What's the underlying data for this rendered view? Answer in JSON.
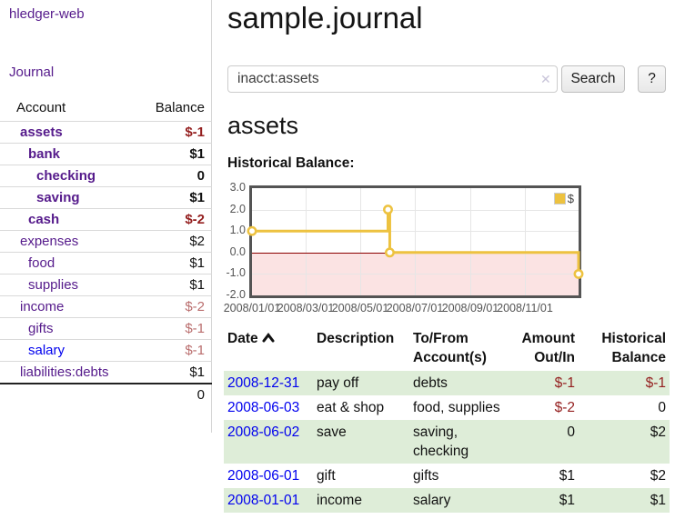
{
  "sidebar": {
    "brand": "hledger-web",
    "nav": [
      {
        "label": "Journal"
      }
    ],
    "accounts_table": {
      "headers": {
        "account": "Account",
        "balance": "Balance"
      },
      "rows": [
        {
          "name": "assets",
          "depth": 1,
          "balance": "$-1",
          "emphasis": true,
          "balance_tone": "neg-strong",
          "link_tone": "purple"
        },
        {
          "name": "bank",
          "depth": 2,
          "balance": "$1",
          "emphasis": true,
          "balance_tone": "normal",
          "link_tone": "purple"
        },
        {
          "name": "checking",
          "depth": 3,
          "balance": "0",
          "emphasis": true,
          "balance_tone": "normal",
          "link_tone": "purple"
        },
        {
          "name": "saving",
          "depth": 3,
          "balance": "$1",
          "emphasis": true,
          "balance_tone": "normal",
          "link_tone": "purple"
        },
        {
          "name": "cash",
          "depth": 2,
          "balance": "$-2",
          "emphasis": true,
          "balance_tone": "neg-strong",
          "link_tone": "purple"
        },
        {
          "name": "expenses",
          "depth": 1,
          "balance": "$2",
          "emphasis": false,
          "balance_tone": "normal",
          "link_tone": "purple"
        },
        {
          "name": "food",
          "depth": 2,
          "balance": "$1",
          "emphasis": false,
          "balance_tone": "normal",
          "link_tone": "purple"
        },
        {
          "name": "supplies",
          "depth": 2,
          "balance": "$1",
          "emphasis": false,
          "balance_tone": "normal",
          "link_tone": "purple"
        },
        {
          "name": "income",
          "depth": 1,
          "balance": "$-2",
          "emphasis": false,
          "balance_tone": "neg-muted",
          "link_tone": "purple"
        },
        {
          "name": "gifts",
          "depth": 2,
          "balance": "$-1",
          "emphasis": false,
          "balance_tone": "neg-muted",
          "link_tone": "purple"
        },
        {
          "name": "salary",
          "depth": 2,
          "balance": "$-1",
          "emphasis": false,
          "balance_tone": "neg-muted",
          "link_tone": "blue"
        },
        {
          "name": "liabilities:debts",
          "depth": 1,
          "balance": "$1",
          "emphasis": false,
          "balance_tone": "normal",
          "link_tone": "purple"
        }
      ],
      "total": "0"
    }
  },
  "main": {
    "title": "sample.journal",
    "search": {
      "value": "inacct:assets",
      "clear_icon": "✕",
      "button": "Search",
      "help_button": "?"
    },
    "account_heading": "assets",
    "chart_label": "Historical Balance:"
  },
  "chart_data": {
    "type": "line",
    "step": true,
    "title": "Historical Balance:",
    "series": [
      {
        "name": "$",
        "color": "#EDC240",
        "points": [
          [
            "2008-01-01",
            1
          ],
          [
            "2008-06-01",
            2
          ],
          [
            "2008-06-03",
            0
          ],
          [
            "2008-12-31",
            -1
          ]
        ]
      }
    ],
    "xlim": [
      "2008-01-01",
      "2008-12-31"
    ],
    "ylim": [
      -2,
      3
    ],
    "yticks": [
      3.0,
      2.0,
      1.0,
      0.0,
      -1.0,
      -2.0
    ],
    "xticks": [
      "2008/01/01",
      "2008/03/01",
      "2008/05/01",
      "2008/07/01",
      "2008/09/01",
      "2008/11/01"
    ],
    "grid": true,
    "legend_position": "top-right",
    "negative_region_fill": "#fbe3e3",
    "zero_line_color": "#8b0000",
    "border_color": "#545454"
  },
  "transactions": {
    "headers": {
      "date": "Date",
      "description": "Description",
      "accounts": "To/From Account(s)",
      "amount": "Amount Out/In",
      "balance": "Historical Balance"
    },
    "sort": {
      "column": "date",
      "direction": "ascending"
    },
    "rows": [
      {
        "date": "2008-12-31",
        "description": "pay off",
        "accounts": "debts",
        "amount": "$-1",
        "balance": "$-1"
      },
      {
        "date": "2008-06-03",
        "description": "eat & shop",
        "accounts": "food, supplies",
        "amount": "$-2",
        "balance": "0"
      },
      {
        "date": "2008-06-02",
        "description": "save",
        "accounts": "saving, checking",
        "amount": "0",
        "balance": "$2"
      },
      {
        "date": "2008-06-01",
        "description": "gift",
        "accounts": "gifts",
        "amount": "$1",
        "balance": "$2"
      },
      {
        "date": "2008-01-01",
        "description": "income",
        "accounts": "salary",
        "amount": "$1",
        "balance": "$1"
      }
    ]
  },
  "colors": {
    "link_purple": "#551A8B",
    "link_blue": "#0000EE",
    "negative_strong": "#941f1f",
    "negative_muted": "#ba6e6e",
    "row_stripe_green": "#deedd8",
    "series_gold": "#EDC240",
    "negative_zone_pink": "#fbe3e3",
    "zero_line_red": "#8b0000",
    "plot_border_gray": "#545454"
  }
}
